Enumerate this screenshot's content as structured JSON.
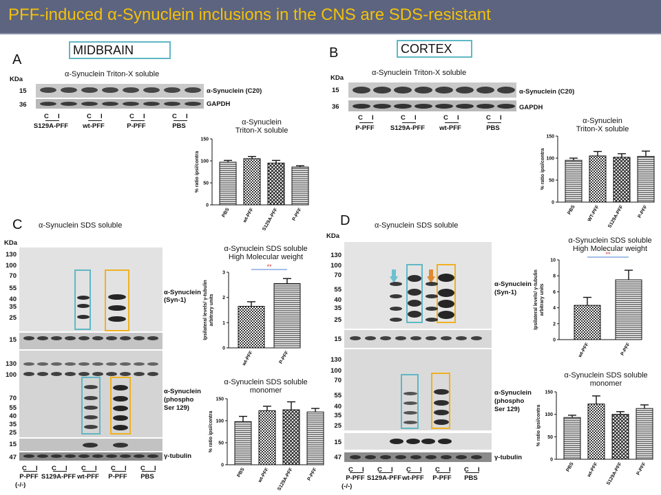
{
  "title": "PFF-induced α-Synuclein inclusions in the CNS are SDS-resistant",
  "panels": {
    "A": "A",
    "B": "B",
    "C": "C",
    "D": "D"
  },
  "regions": {
    "midbrain": "MIDBRAIN",
    "cortex": "CORTEX"
  },
  "blot_labels": {
    "triton_soluble": "α-Synuclein Triton-X  soluble",
    "sds_soluble": "α-Synuclein SDS soluble",
    "kda": "KDa",
    "syn_c20": "α-Synuclein (C20)",
    "gapdh": "GAPDH",
    "syn1_a": "α-Synuclein",
    "syn1_b": "(Syn-1)",
    "phos_a": "α-Synuclein",
    "phos_b": "(phospho",
    "phos_c": "Ser 129)",
    "tubulin": "γ-tubulin",
    "c": "C",
    "i": "I"
  },
  "markers": {
    "a_top": [
      "15",
      "36"
    ],
    "c_hmw": [
      "130",
      "100",
      "70",
      "55",
      "40",
      "35",
      "25"
    ],
    "c_15": "15",
    "c_phos": [
      "130",
      "100",
      "70",
      "55",
      "40",
      "35",
      "25"
    ],
    "c_15b": "15",
    "c_47": "47",
    "d_hmw": [
      "130",
      "100",
      "70",
      "55",
      "40",
      "35",
      "25"
    ],
    "d_15": "15",
    "d_phos": [
      "130",
      "100",
      "70",
      "55",
      "40",
      "35",
      "25"
    ],
    "d_15b": "15",
    "d_47": "47"
  },
  "lanes": {
    "A": [
      "S129A-PFF",
      "wt-PFF",
      "P-PFF",
      "PBS"
    ],
    "B": [
      "P-PFF",
      "S129A-PFF",
      "wt-PFF",
      "PBS"
    ],
    "C": [
      "P-PFF",
      "S129A-PFF",
      "wt-PFF",
      "P-PFF",
      "PBS"
    ],
    "C_sub": "(-/-)",
    "D": [
      "P-PFF",
      "S129A-PFF",
      "wt-PFF",
      "P-PFF",
      "PBS"
    ],
    "D_sub": "(-/-)"
  },
  "charts": {
    "a_title": [
      "α-Synuclein",
      "Triton-X soluble"
    ],
    "b_title": [
      "α-Synuclein",
      "Triton-X soluble"
    ],
    "c1_title": [
      "α-Synuclein SDS soluble",
      "High Molecular weight"
    ],
    "c2_title": [
      "α-Synuclein SDS soluble",
      "monomer"
    ],
    "d1_title": [
      "α-Synuclein SDS soluble",
      "High Molecular weight"
    ],
    "d2_title": [
      "α-Synuclein SDS soluble",
      "monomer"
    ],
    "ratio_label": "% ratio ipsi/contra",
    "hmw_label": [
      "Ipsilateral levels/ γ-tubulin",
      "arbitrary units"
    ],
    "sig": "**"
  },
  "chart_data": [
    {
      "type": "bar",
      "categories": [
        "PBS",
        "wt-PFF",
        "S129A-PFF",
        "P-PFF"
      ],
      "values": [
        97,
        105,
        95,
        86
      ],
      "errors": [
        4,
        5,
        6,
        3
      ],
      "ylim": [
        0,
        150
      ],
      "yticks": [
        0,
        50,
        100,
        150
      ],
      "ylabel": "% ratio ipsi/contra",
      "patterns": [
        "hstripe",
        "check",
        "check2",
        "hstripe"
      ]
    },
    {
      "type": "bar",
      "categories": [
        "PBS",
        "WT-PFF",
        "S129A-PFF",
        "P-PFF"
      ],
      "values": [
        95,
        105,
        102,
        104
      ],
      "errors": [
        5,
        10,
        8,
        12
      ],
      "ylim": [
        0,
        150
      ],
      "yticks": [
        0,
        50,
        100,
        150
      ],
      "ylabel": "% ratio ipsi/contra",
      "patterns": [
        "hstripe",
        "check",
        "check2",
        "hstripe"
      ]
    },
    {
      "type": "bar",
      "categories": [
        "wt-PFF",
        "P-PFF"
      ],
      "values": [
        1.65,
        2.55
      ],
      "errors": [
        0.18,
        0.2
      ],
      "ylim": [
        0,
        3
      ],
      "yticks": [
        0,
        1,
        2,
        3
      ],
      "ylabel": "Ipsilateral levels/ γ-tubulin arbitrary units",
      "patterns": [
        "check",
        "hstripe"
      ]
    },
    {
      "type": "bar",
      "categories": [
        "PBS",
        "wt-PFF",
        "S129A-PFF",
        "P-PFF"
      ],
      "values": [
        98,
        123,
        125,
        120
      ],
      "errors": [
        12,
        10,
        18,
        8
      ],
      "ylim": [
        0,
        150
      ],
      "yticks": [
        0,
        50,
        100,
        150
      ],
      "ylabel": "% ratio ipsi/contra",
      "patterns": [
        "hstripe",
        "check",
        "check2",
        "hstripe"
      ]
    },
    {
      "type": "bar",
      "categories": [
        "wt-PFF",
        "P-PFF"
      ],
      "values": [
        4.3,
        7.5
      ],
      "errors": [
        1.0,
        1.2
      ],
      "ylim": [
        0,
        10
      ],
      "yticks": [
        0,
        2,
        4,
        6,
        8,
        10
      ],
      "ylabel": "Ipsilateral levels/ γ-tubulin arbitrary units",
      "patterns": [
        "check",
        "hstripe"
      ]
    },
    {
      "type": "bar",
      "categories": [
        "PBS",
        "wt-PFF",
        "S129A-PFF",
        "P-PFF"
      ],
      "values": [
        93,
        123,
        100,
        113
      ],
      "errors": [
        5,
        18,
        6,
        8
      ],
      "ylim": [
        0,
        150
      ],
      "yticks": [
        0,
        50,
        100,
        150
      ],
      "ylabel": "% ratio ipsi/contra",
      "patterns": [
        "hstripe",
        "check",
        "check2",
        "hstripe"
      ]
    }
  ]
}
